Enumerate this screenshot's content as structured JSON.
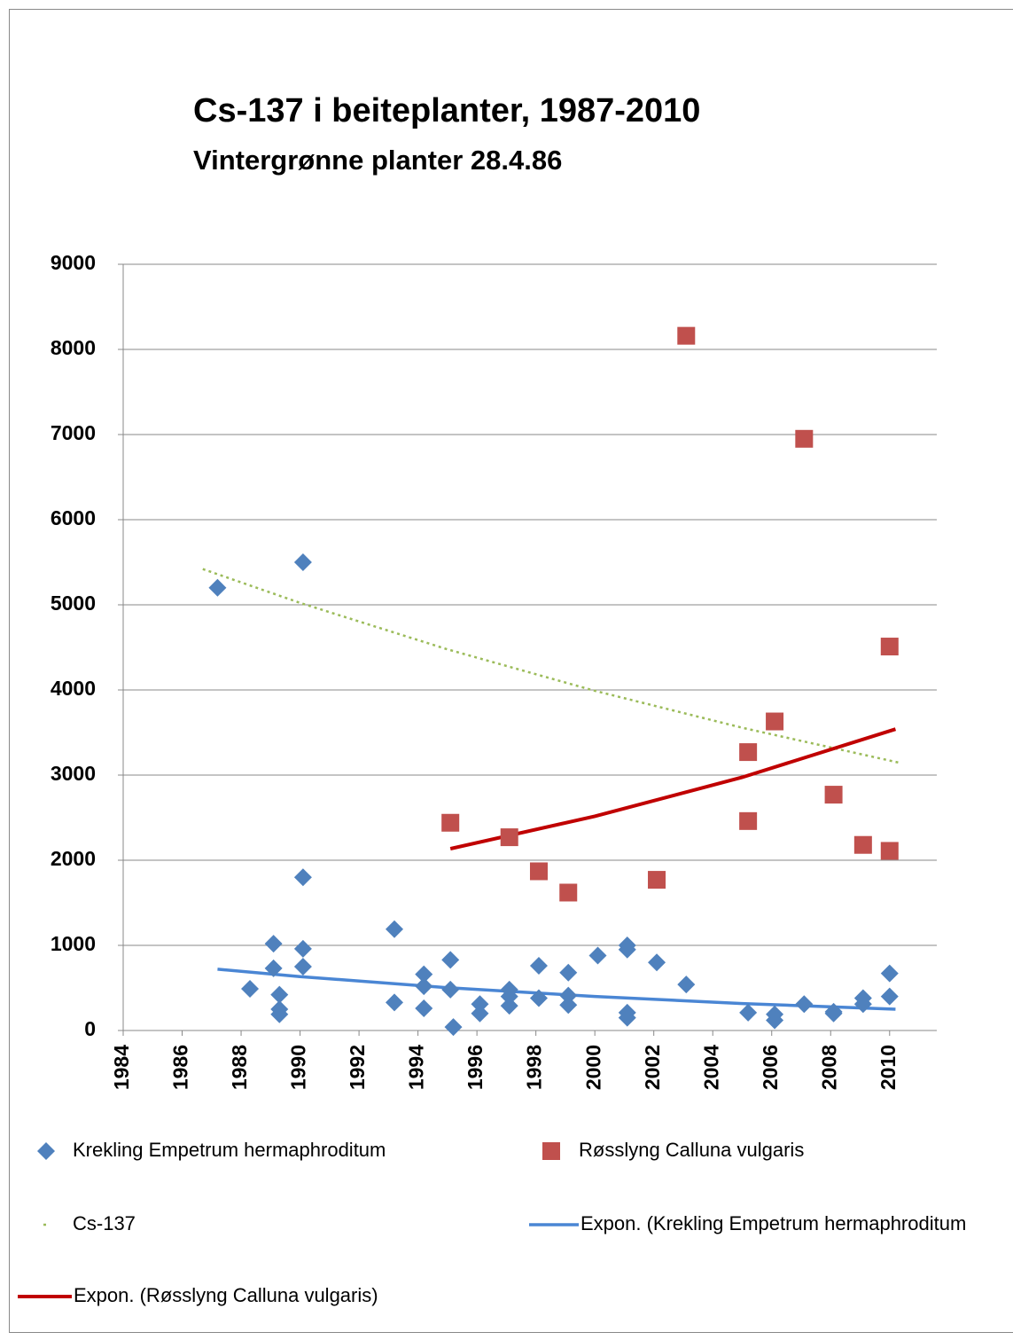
{
  "chart_data": {
    "type": "scatter",
    "title": "Cs-137 i beiteplanter, 1987-2010",
    "subtitle": "Vintergrønne planter 28.4.86",
    "xlim": [
      1984,
      2011.6
    ],
    "xticks": [
      1984,
      1986,
      1988,
      1990,
      1992,
      1994,
      1996,
      1998,
      2000,
      2002,
      2004,
      2006,
      2008,
      2010
    ],
    "ylim": [
      0,
      9000
    ],
    "yticks": [
      0,
      1000,
      2000,
      3000,
      4000,
      5000,
      6000,
      7000,
      8000,
      9000
    ],
    "grid": true,
    "series": [
      {
        "name": "Krekling Empetrum hermaphroditum",
        "color": "#4f81bd",
        "marker": "diamond",
        "x": [
          1987.2,
          1990.1,
          1990.1,
          1990.1,
          1990.1,
          1989.1,
          1989.1,
          1989.3,
          1989.3,
          1989.3,
          1988.3,
          1993.2,
          1993.2,
          1994.2,
          1994.2,
          1994.2,
          1995.1,
          1995.1,
          1995.2,
          1996.1,
          1996.1,
          1997.1,
          1997.1,
          1997.1,
          1998.1,
          1998.1,
          1999.1,
          1999.1,
          1999.1,
          2000.1,
          2001.1,
          2001.1,
          2001.1,
          2001.1,
          2002.1,
          2003.1,
          2005.2,
          2006.1,
          2006.1,
          2007.1,
          2008.1,
          2008.1,
          2009.1,
          2009.1,
          2010.0,
          2010.0
        ],
        "values": [
          5200,
          5500,
          1800,
          960,
          750,
          1020,
          730,
          420,
          250,
          190,
          490,
          1190,
          330,
          660,
          520,
          260,
          830,
          480,
          40,
          310,
          200,
          480,
          400,
          290,
          760,
          380,
          680,
          410,
          300,
          880,
          1000,
          950,
          210,
          150,
          800,
          540,
          210,
          190,
          120,
          310,
          220,
          200,
          380,
          310,
          670,
          400
        ]
      },
      {
        "name": "Røsslyng Calluna vulgaris",
        "color": "#c0504d",
        "marker": "square",
        "x": [
          1995.1,
          1997.1,
          1998.1,
          1999.1,
          2002.1,
          2003.1,
          2005.2,
          2005.2,
          2006.1,
          2007.1,
          2008.1,
          2009.1,
          2010.0,
          2010.0
        ],
        "values": [
          2440,
          2270,
          1870,
          1620,
          1770,
          8160,
          3270,
          2460,
          3630,
          6950,
          2770,
          2180,
          2110,
          4510
        ]
      },
      {
        "name": "Cs-137",
        "color": "#9bbb59",
        "line": "dotted",
        "x": [
          1986.7,
          1990,
          1995,
          2000,
          2005,
          2010.4
        ],
        "values": [
          5420,
          5023,
          4477,
          3990,
          3556,
          3140
        ]
      },
      {
        "name": "Expon. (Krekling Empetrum hermaphroditum",
        "color": "#4a86d4",
        "line": "solid",
        "x": [
          1987.2,
          1990,
          1995,
          2000,
          2005,
          2010.2
        ],
        "values": [
          720,
          633,
          503,
          400,
          317,
          250
        ]
      },
      {
        "name": "Expon. (Røsslyng Calluna vulgaris)",
        "color": "#c00000",
        "line": "solid",
        "x": [
          1995.1,
          2000,
          2005,
          2010.2
        ],
        "values": [
          2135,
          2516,
          2974,
          3540
        ]
      }
    ]
  }
}
